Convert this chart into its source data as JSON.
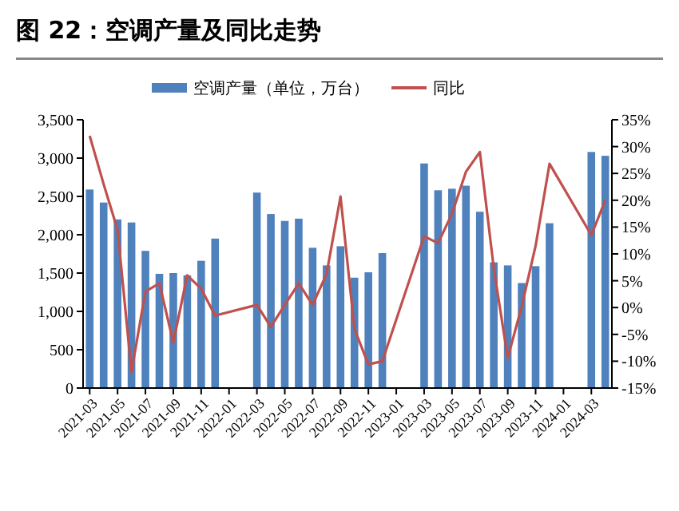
{
  "chart_data": {
    "type": "bar",
    "title": "图 22：空调产量及同比走势",
    "categories": [
      "2021-03",
      null,
      "2021-05",
      null,
      "2021-07",
      null,
      "2021-09",
      null,
      "2021-11",
      null,
      "2022-01",
      null,
      "2022-03",
      null,
      "2022-05",
      null,
      "2022-07",
      null,
      "2022-09",
      null,
      "2022-11",
      null,
      "2023-01",
      null,
      "2023-03",
      null,
      "2023-05",
      null,
      "2023-07",
      null,
      "2023-09",
      null,
      "2023-11",
      null,
      "2024-01",
      null,
      "2024-03",
      null
    ],
    "series": [
      {
        "name": "空调产量（单位，万台）",
        "color": "#4f81bd",
        "values": [
          2590,
          2420,
          2200,
          2160,
          1790,
          1490,
          1500,
          1470,
          1660,
          1950,
          null,
          null,
          2550,
          2270,
          2180,
          2210,
          1830,
          1600,
          1850,
          1440,
          1510,
          1760,
          null,
          null,
          2930,
          2580,
          2600,
          2640,
          2300,
          1640,
          1600,
          1370,
          1590,
          2150,
          null,
          null,
          3080,
          3030
        ]
      },
      {
        "name": "同比",
        "type": "line",
        "axis": "y2",
        "color": "#c0504d",
        "values": [
          32,
          23,
          14.5,
          -12,
          3,
          4.5,
          -6.5,
          6,
          3.5,
          -1.5,
          null,
          null,
          0.5,
          -3.6,
          0.5,
          4.5,
          0.5,
          6.3,
          20.7,
          -4,
          -10.6,
          -10,
          null,
          null,
          13.3,
          12,
          17.5,
          25.3,
          29,
          7.3,
          -9.4,
          0.2,
          11.5,
          26.8,
          null,
          null,
          13.5,
          20
        ]
      }
    ],
    "ylim": [
      0,
      3500
    ],
    "yticks": [
      0,
      {
        "value": 500,
        "label": "500"
      },
      {
        "value": 1000,
        "label": "1,000"
      },
      {
        "value": 1500,
        "label": "1,500"
      },
      {
        "value": 2000,
        "label": "2,000"
      },
      {
        "value": 2500,
        "label": "2,500"
      },
      {
        "value": 3000,
        "label": "3,000"
      },
      {
        "value": 3500,
        "label": "3,500"
      }
    ],
    "y2lim": [
      -15,
      35
    ],
    "y2ticks": [
      {
        "value": -15,
        "label": "-15%"
      },
      {
        "value": -10,
        "label": "-10%"
      },
      {
        "value": -5,
        "label": "-5%"
      },
      {
        "value": 0,
        "label": "0%"
      },
      {
        "value": 5,
        "label": "5%"
      },
      {
        "value": 10,
        "label": "10%"
      },
      {
        "value": 15,
        "label": "15%"
      },
      {
        "value": 20,
        "label": "20%"
      },
      {
        "value": 25,
        "label": "25%"
      },
      {
        "value": 30,
        "label": "30%"
      },
      {
        "value": 35,
        "label": "35%"
      }
    ],
    "grid": false,
    "legend": "top"
  }
}
